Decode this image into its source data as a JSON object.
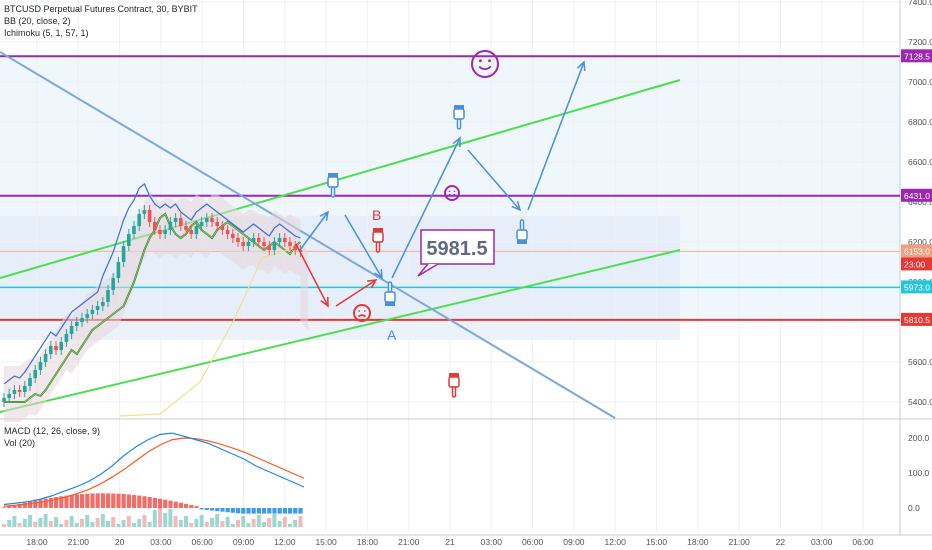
{
  "header": {
    "symbol_line": "BTCUSD Perpetual Futures Contract, 30, BYBIT",
    "bb_line": "BB (20, close, 2)",
    "ichimoku_line": "Ichimoku (5, 1, 57, 1)"
  },
  "sub_header": {
    "macd_line": "MACD (12, 26, close, 9)",
    "vol_line": "Vol (20)"
  },
  "chart_data": [
    {
      "type": "line",
      "title": "BTCUSD Perpetual Futures Contract, 30, BYBIT",
      "price_axis": {
        "ticks": [
          5400.0,
          5600.0,
          5800.0,
          6000.0,
          6200.0,
          6400.0,
          6600.0,
          6800.0,
          7000.0,
          7200.0,
          7400.0
        ],
        "ylim": [
          5320,
          7410
        ]
      },
      "time_axis": {
        "tick_labels": [
          "18:00",
          "21:00",
          "20",
          "03:00",
          "06:00",
          "09:00",
          "12:00",
          "15:00",
          "18:00",
          "21:00",
          "21",
          "03:00",
          "06:00",
          "09:00",
          "12:00",
          "15:00",
          "18:00",
          "21:00",
          "22",
          "03:00",
          "06:00"
        ]
      },
      "candles_close_approx": [
        5420,
        5440,
        5460,
        5450,
        5480,
        5520,
        5560,
        5600,
        5640,
        5680,
        5660,
        5700,
        5740,
        5780,
        5800,
        5820,
        5840,
        5860,
        5880,
        5900,
        5960,
        6020,
        6100,
        6180,
        6240,
        6280,
        6340,
        6360,
        6300,
        6260,
        6240,
        6260,
        6300,
        6320,
        6280,
        6260,
        6240,
        6280,
        6300,
        6320,
        6300,
        6280,
        6260,
        6240,
        6220,
        6200,
        6180,
        6200,
        6220,
        6200,
        6180,
        6160,
        6200,
        6220,
        6200,
        6180,
        6160,
        6150
      ],
      "price_labels": [
        {
          "value": "7128.5",
          "color": "#9c27b0"
        },
        {
          "value": "6431.0",
          "color": "#9c27b0"
        },
        {
          "value": "6153.0",
          "color": "#f0a080"
        },
        {
          "value": "23:00",
          "color": "#e53935"
        },
        {
          "value": "5973.0",
          "color": "#26c6da"
        },
        {
          "value": "5810.5",
          "color": "#e53935"
        }
      ],
      "annotations": {
        "callout": "5981.5",
        "label_b": "B",
        "label_a": "A"
      },
      "horizontal_levels": {
        "purple_top": 7128.5,
        "purple_mid": 6431.0,
        "cyan": 5973.0,
        "red": 5810.5,
        "orange": 6153.0
      }
    },
    {
      "type": "line",
      "title": "MACD (12, 26, close, 9)",
      "y_ticks": [
        0.0,
        100.0,
        200.0
      ],
      "macd_line_approx": [
        10,
        14,
        18,
        25,
        35,
        48,
        60,
        75,
        95,
        120,
        150,
        175,
        195,
        210,
        214,
        205,
        195,
        185,
        170,
        155,
        140,
        120,
        105,
        90,
        75,
        60
      ],
      "signal_line_approx": [
        5,
        8,
        12,
        16,
        22,
        30,
        40,
        52,
        68,
        88,
        110,
        135,
        160,
        180,
        195,
        200,
        198,
        192,
        183,
        172,
        160,
        145,
        130,
        115,
        100,
        85
      ],
      "colors": {
        "macd": "#1e88e5",
        "signal": "#ff5722",
        "hist_pos": "#ef5350",
        "hist_neg": "#1e88e5"
      }
    }
  ],
  "colors": {
    "purple": "#9c27b0",
    "green_channel": "#4cde4c",
    "blue_arrow": "#4a90d9",
    "red_arrow": "#e53935",
    "cyan": "#26c6da",
    "red_level": "#e53935"
  },
  "icons": [
    "smiley-face-icon",
    "sad-face-icon",
    "pointing-hand-icon"
  ]
}
